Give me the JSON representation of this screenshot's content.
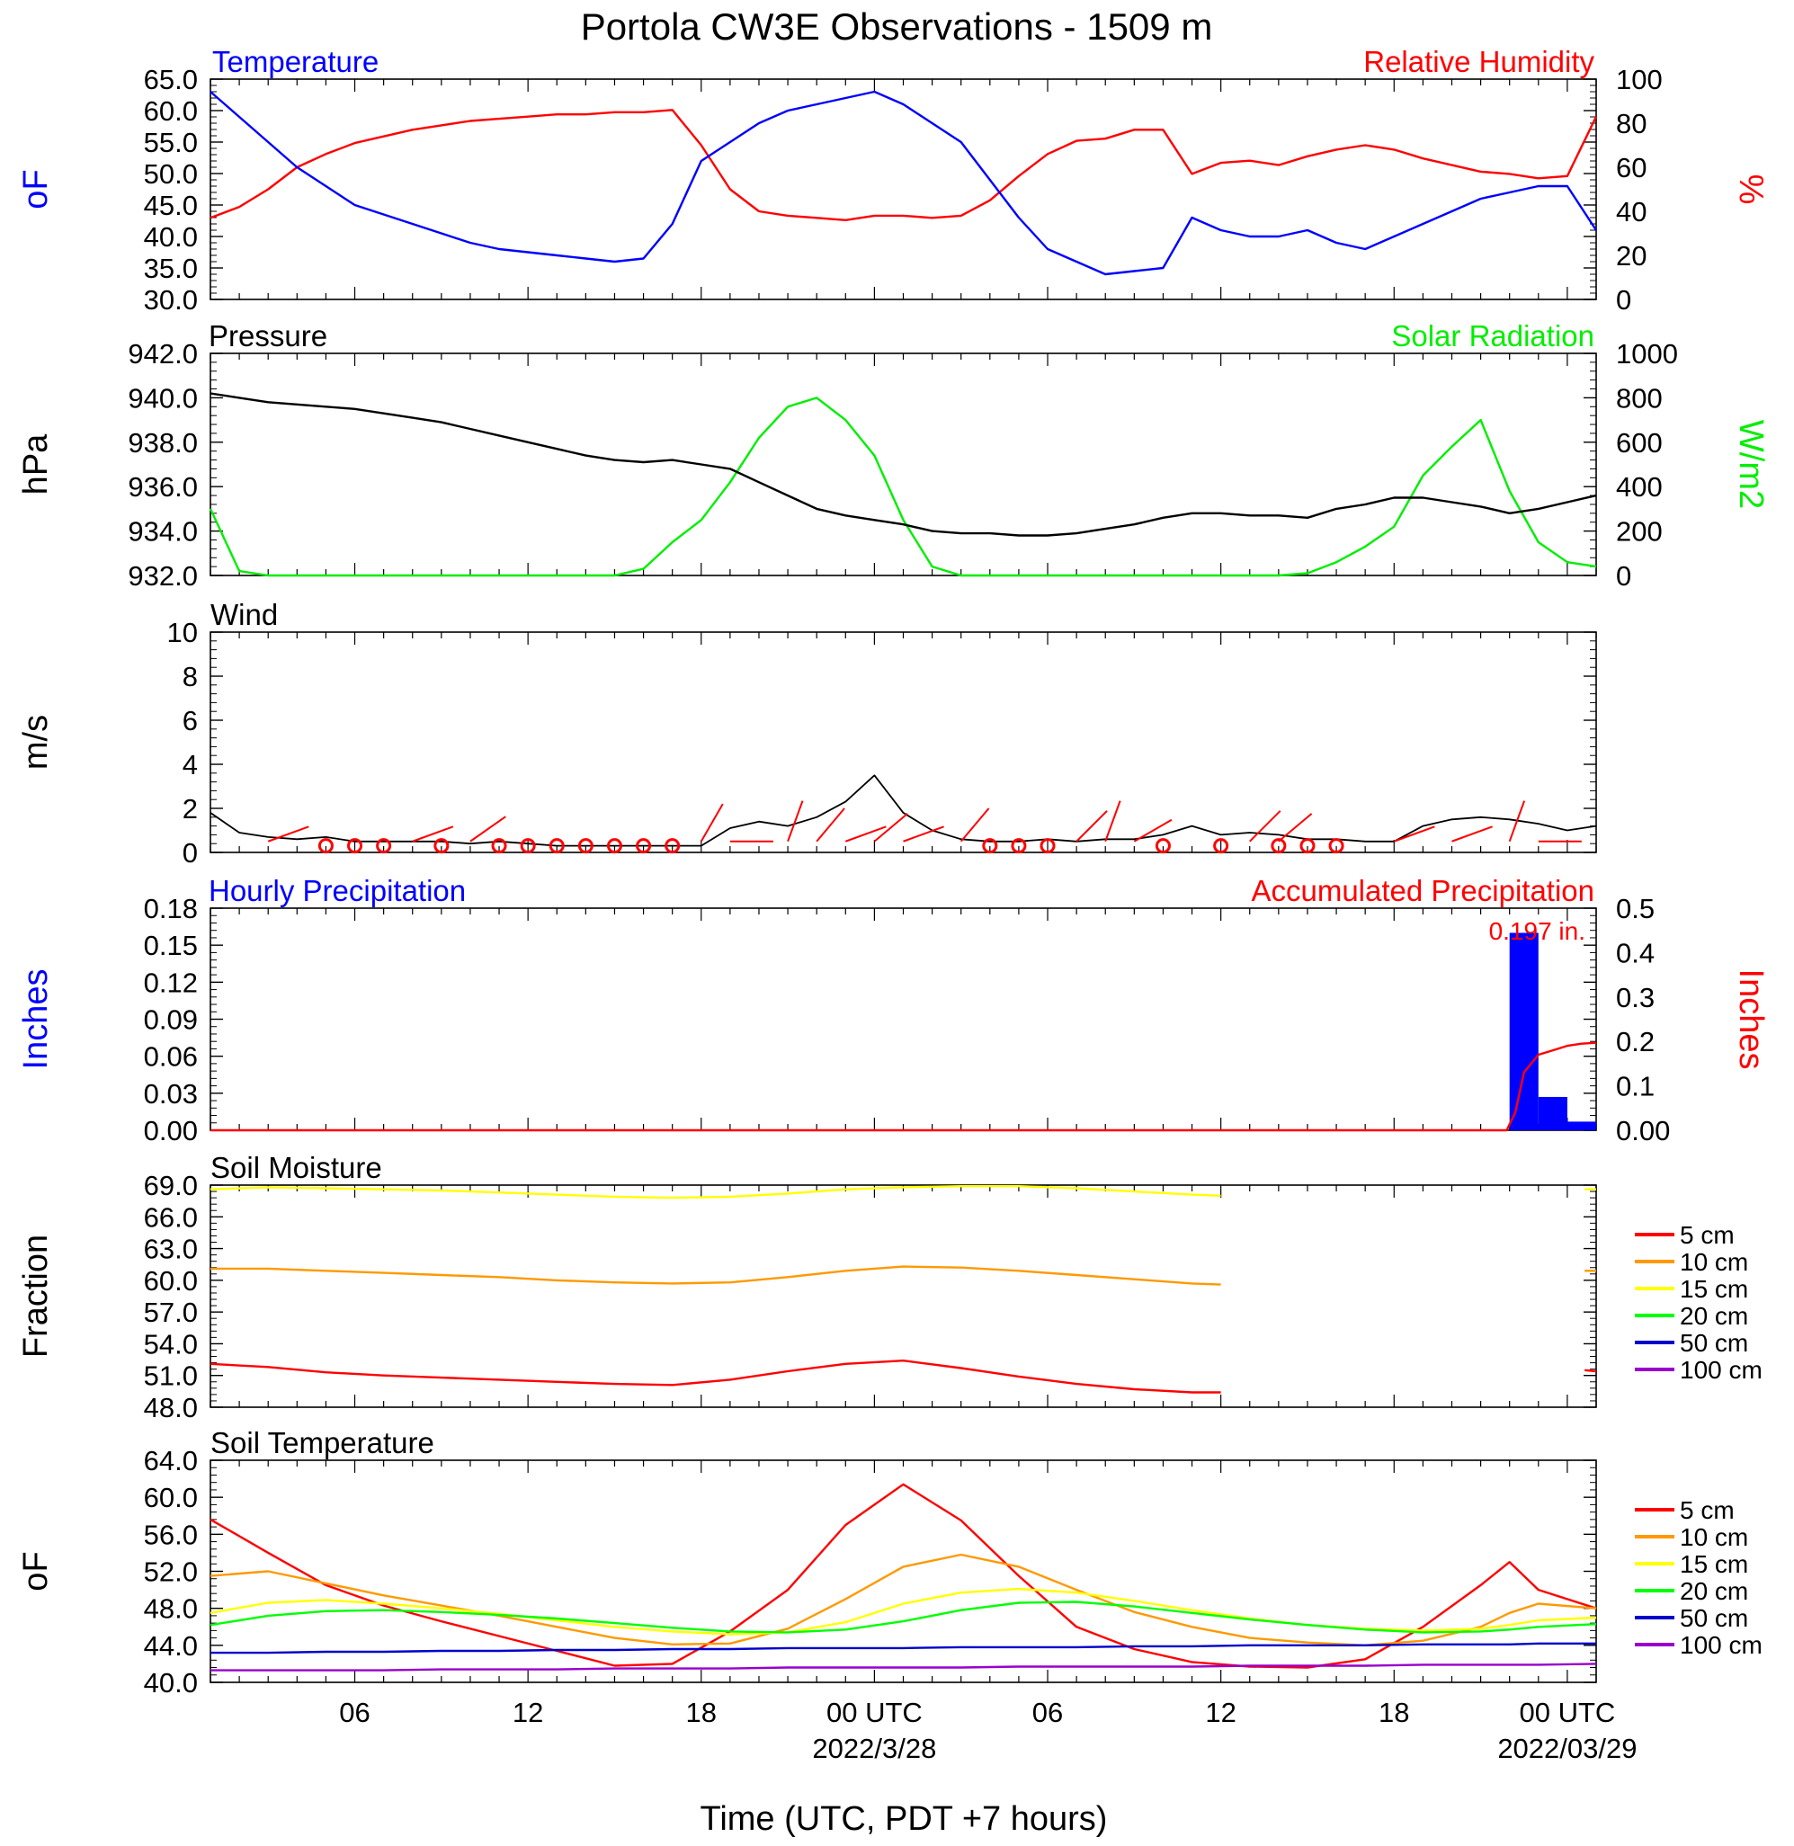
{
  "title": "Portola CW3E Observations - 1509 m",
  "x_axis": {
    "label": "Time (UTC, PDT +7 hours)",
    "range_hours": [
      0,
      48
    ],
    "tick_hours": [
      5,
      11,
      17,
      23,
      29,
      35,
      41,
      47
    ],
    "tick_labels": [
      "06",
      "12",
      "18",
      "00 UTC",
      "06",
      "12",
      "18",
      "00 UTC"
    ],
    "date_labels": [
      {
        "hour": 23,
        "text": "2022/3/28"
      },
      {
        "hour": 47,
        "text": "2022/03/29"
      }
    ]
  },
  "colors": {
    "temperature": "#0000ff",
    "humidity": "#ff0000",
    "pressure": "#000000",
    "solar": "#00ee00",
    "wind": "#000000",
    "barbs": "#ff0000",
    "precip_bar": "#0000ff",
    "precip_accum": "#ff0000",
    "depth_5": "#ff0000",
    "depth_10": "#ff9900",
    "depth_15": "#ffff00",
    "depth_20": "#00ff00",
    "depth_50": "#0000cc",
    "depth_100": "#9900cc"
  },
  "legend_depths": [
    "5 cm",
    "10 cm",
    "15 cm",
    "20 cm",
    "50 cm",
    "100 cm"
  ],
  "chart_data": [
    {
      "type": "line",
      "name": "panel-temp-rh",
      "title_left": "Temperature",
      "title_right": "Relative Humidity",
      "ylabel_left": "oF",
      "ylabel_right": "%",
      "ylim_left": [
        30,
        65
      ],
      "ylim_right": [
        0,
        100
      ],
      "yticks_left": [
        "30.0",
        "35.0",
        "40.0",
        "45.0",
        "50.0",
        "55.0",
        "60.0",
        "65.0"
      ],
      "yticks_right": [
        "0",
        "20",
        "40",
        "60",
        "80",
        "100"
      ],
      "x": [
        0,
        1,
        2,
        3,
        4,
        5,
        6,
        7,
        8,
        9,
        10,
        11,
        12,
        13,
        14,
        15,
        16,
        17,
        18,
        19,
        20,
        21,
        22,
        23,
        24,
        25,
        26,
        27,
        28,
        29,
        30,
        31,
        32,
        33,
        34,
        35,
        36,
        37,
        38,
        39,
        40,
        41,
        42,
        43,
        44,
        45,
        46,
        47,
        48
      ],
      "series": [
        {
          "name": "Temperature",
          "axis": "left",
          "values": [
            63,
            59,
            55,
            51,
            48,
            45,
            43.5,
            42,
            40.5,
            39,
            38,
            37.5,
            37,
            36.5,
            36,
            36.5,
            42,
            52,
            55,
            58,
            60,
            61,
            62,
            63,
            61,
            58,
            55,
            49,
            43,
            38,
            36,
            34,
            34.5,
            35,
            43,
            41,
            40,
            40,
            41,
            39,
            38,
            40,
            42,
            44,
            46,
            47,
            48,
            48,
            41
          ]
        },
        {
          "name": "Relative Humidity",
          "axis": "right",
          "values": [
            37,
            42,
            50,
            60,
            66,
            71,
            74,
            77,
            79,
            81,
            82,
            83,
            84,
            84,
            85,
            85,
            86,
            70,
            50,
            40,
            38,
            37,
            36,
            38,
            38,
            37,
            38,
            45,
            56,
            66,
            72,
            73,
            77,
            77,
            57,
            62,
            63,
            61,
            65,
            68,
            70,
            68,
            64,
            61,
            58,
            57,
            55,
            56,
            83
          ]
        }
      ]
    },
    {
      "type": "line",
      "name": "panel-pressure-solar",
      "title_left": "Pressure",
      "title_right": "Solar Radiation",
      "ylabel_left": "hPa",
      "ylabel_right": "W/m2",
      "ylim_left": [
        932,
        942
      ],
      "ylim_right": [
        0,
        1000
      ],
      "yticks_left": [
        "932.0",
        "934.0",
        "936.0",
        "938.0",
        "940.0",
        "942.0"
      ],
      "yticks_right": [
        "0",
        "200",
        "400",
        "600",
        "800",
        "1000"
      ],
      "x": [
        0,
        1,
        2,
        3,
        4,
        5,
        6,
        7,
        8,
        9,
        10,
        11,
        12,
        13,
        14,
        15,
        16,
        17,
        18,
        19,
        20,
        21,
        22,
        23,
        24,
        25,
        26,
        27,
        28,
        29,
        30,
        31,
        32,
        33,
        34,
        35,
        36,
        37,
        38,
        39,
        40,
        41,
        42,
        43,
        44,
        45,
        46,
        47,
        48
      ],
      "series": [
        {
          "name": "Pressure",
          "axis": "left",
          "values": [
            940.2,
            940,
            939.8,
            939.7,
            939.6,
            939.5,
            939.3,
            939.1,
            938.9,
            938.6,
            938.3,
            938,
            937.7,
            937.4,
            937.2,
            937.1,
            937.2,
            937,
            936.8,
            936.2,
            935.6,
            935,
            934.7,
            934.5,
            934.3,
            934,
            933.9,
            933.9,
            933.8,
            933.8,
            933.9,
            934.1,
            934.3,
            934.6,
            934.8,
            934.8,
            934.7,
            934.7,
            934.6,
            935,
            935.2,
            935.5,
            935.5,
            935.3,
            935.1,
            934.8,
            935,
            935.3,
            935.6
          ]
        },
        {
          "name": "Solar Radiation",
          "axis": "right",
          "values": [
            300,
            20,
            0,
            0,
            0,
            0,
            0,
            0,
            0,
            0,
            0,
            0,
            0,
            0,
            0,
            30,
            150,
            250,
            420,
            620,
            760,
            800,
            700,
            540,
            250,
            40,
            0,
            0,
            0,
            0,
            0,
            0,
            0,
            0,
            0,
            0,
            0,
            0,
            10,
            60,
            130,
            220,
            450,
            580,
            700,
            380,
            150,
            60,
            40
          ]
        }
      ]
    },
    {
      "type": "line",
      "name": "panel-wind",
      "title_left": "Wind",
      "ylabel_left": "m/s",
      "ylim_left": [
        0,
        10
      ],
      "yticks_left": [
        "0",
        "2",
        "4",
        "6",
        "8",
        "10"
      ],
      "x": [
        0,
        1,
        2,
        3,
        4,
        5,
        6,
        7,
        8,
        9,
        10,
        11,
        12,
        13,
        14,
        15,
        16,
        17,
        18,
        19,
        20,
        21,
        22,
        23,
        24,
        25,
        26,
        27,
        28,
        29,
        30,
        31,
        32,
        33,
        34,
        35,
        36,
        37,
        38,
        39,
        40,
        41,
        42,
        43,
        44,
        45,
        46,
        47,
        48
      ],
      "series": [
        {
          "name": "Wind",
          "axis": "left",
          "values": [
            1.8,
            0.9,
            0.7,
            0.6,
            0.7,
            0.5,
            0.5,
            0.5,
            0.5,
            0.4,
            0.5,
            0.4,
            0.3,
            0.3,
            0.3,
            0.3,
            0.3,
            0.3,
            1.1,
            1.4,
            1.2,
            1.6,
            2.3,
            3.5,
            1.8,
            1,
            0.6,
            0.5,
            0.5,
            0.6,
            0.5,
            0.6,
            0.6,
            0.8,
            1.2,
            0.8,
            0.9,
            0.8,
            0.6,
            0.6,
            0.5,
            0.5,
            1.2,
            1.5,
            1.6,
            1.5,
            1.3,
            1,
            1.2
          ]
        }
      ],
      "calm_circle_hours": [
        4,
        5,
        6,
        8,
        10,
        11,
        12,
        13,
        14,
        15,
        16,
        27,
        28,
        29,
        33,
        35,
        37,
        38,
        39
      ],
      "barbs": [
        {
          "hour": 2,
          "dir": 250
        },
        {
          "hour": 7,
          "dir": 250
        },
        {
          "hour": 9,
          "dir": 235
        },
        {
          "hour": 17,
          "dir": 210
        },
        {
          "hour": 18,
          "dir": 270
        },
        {
          "hour": 20,
          "dir": 200
        },
        {
          "hour": 21,
          "dir": 220
        },
        {
          "hour": 22,
          "dir": 250
        },
        {
          "hour": 23,
          "dir": 230
        },
        {
          "hour": 24,
          "dir": 250
        },
        {
          "hour": 26,
          "dir": 220
        },
        {
          "hour": 30,
          "dir": 225
        },
        {
          "hour": 31,
          "dir": 200
        },
        {
          "hour": 32,
          "dir": 240
        },
        {
          "hour": 36,
          "dir": 225
        },
        {
          "hour": 37,
          "dir": 230
        },
        {
          "hour": 41,
          "dir": 250
        },
        {
          "hour": 43,
          "dir": 250
        },
        {
          "hour": 45,
          "dir": 200
        },
        {
          "hour": 46,
          "dir": 270
        }
      ]
    },
    {
      "type": "bar",
      "name": "panel-precip",
      "title_left": "Hourly Precipitation",
      "title_right": "Accumulated Precipitation",
      "annotation": "0.197 in.",
      "ylabel_left": "Inches",
      "ylabel_right": "Inches",
      "ylim_left": [
        0,
        0.18
      ],
      "ylim_right": [
        0,
        0.5
      ],
      "yticks_left": [
        "0.00",
        "0.03",
        "0.06",
        "0.09",
        "0.12",
        "0.15",
        "0.18"
      ],
      "yticks_right": [
        "0.00",
        "0.1",
        "0.2",
        "0.3",
        "0.4",
        "0.5"
      ],
      "bars": [
        {
          "start_hour": 45,
          "end_hour": 46,
          "value": 0.16
        },
        {
          "start_hour": 46,
          "end_hour": 47,
          "value": 0.027
        },
        {
          "start_hour": 47,
          "end_hour": 48,
          "value": 0.007
        }
      ],
      "accumulated": {
        "x": [
          0,
          44.9,
          45.2,
          45.5,
          46,
          46.5,
          47,
          47.5,
          48
        ],
        "values": [
          0,
          0,
          0.04,
          0.13,
          0.17,
          0.18,
          0.19,
          0.195,
          0.197
        ]
      }
    },
    {
      "type": "line",
      "name": "panel-soil-moisture",
      "title_left": "Soil Moisture",
      "ylabel_left": "Fraction",
      "ylim_left": [
        48,
        69
      ],
      "yticks_left": [
        "48.0",
        "51.0",
        "54.0",
        "57.0",
        "60.0",
        "63.0",
        "66.0",
        "69.0"
      ],
      "x": [
        0,
        2,
        4,
        6,
        8,
        10,
        12,
        14,
        16,
        18,
        20,
        22,
        24,
        26,
        28,
        30,
        32,
        34,
        35
      ],
      "series": [
        {
          "name": "5 cm",
          "values": [
            52.1,
            51.8,
            51.3,
            51,
            50.8,
            50.6,
            50.4,
            50.2,
            50.1,
            50.6,
            51.4,
            52.1,
            52.4,
            51.7,
            50.9,
            50.2,
            49.7,
            49.4,
            49.4
          ]
        },
        {
          "name": "10 cm",
          "values": [
            61.1,
            61.1,
            60.9,
            60.7,
            60.5,
            60.3,
            60,
            59.8,
            59.7,
            59.8,
            60.3,
            60.9,
            61.3,
            61.2,
            60.9,
            60.5,
            60.1,
            59.7,
            59.6
          ]
        },
        {
          "name": "15 cm",
          "values": [
            68.6,
            68.8,
            68.7,
            68.6,
            68.5,
            68.3,
            68.1,
            67.9,
            67.8,
            67.9,
            68.2,
            68.6,
            68.8,
            68.9,
            68.9,
            68.7,
            68.4,
            68.1,
            68
          ]
        }
      ],
      "tail": [
        {
          "name": "5 cm",
          "x": [
            47.6,
            48
          ],
          "values": [
            51.5,
            51.4
          ]
        },
        {
          "name": "10 cm",
          "x": [
            47.6,
            48
          ],
          "values": [
            60.9,
            60.9
          ]
        },
        {
          "name": "15 cm",
          "x": [
            47.6,
            48
          ],
          "values": [
            68.6,
            68.6
          ]
        }
      ],
      "legend": [
        "5 cm",
        "10 cm",
        "15 cm",
        "20 cm",
        "50 cm",
        "100 cm"
      ]
    },
    {
      "type": "line",
      "name": "panel-soil-temp",
      "title_left": "Soil Temperature",
      "ylabel_left": "oF",
      "ylim_left": [
        40,
        64
      ],
      "yticks_left": [
        "40.0",
        "44.0",
        "48.0",
        "52.0",
        "56.0",
        "60.0",
        "64.0"
      ],
      "x": [
        0,
        2,
        4,
        6,
        8,
        10,
        12,
        14,
        16,
        18,
        20,
        22,
        24,
        26,
        28,
        30,
        32,
        34,
        36,
        38,
        40,
        42,
        44,
        45,
        46,
        48
      ],
      "series": [
        {
          "name": "5 cm",
          "values": [
            57.6,
            54,
            50.5,
            48.3,
            46.6,
            45,
            43.4,
            41.8,
            42,
            45.5,
            50,
            57,
            61.4,
            57.5,
            51.5,
            46,
            43.6,
            42.2,
            41.7,
            41.6,
            42.5,
            46,
            50.5,
            53,
            50,
            48
          ]
        },
        {
          "name": "10 cm",
          "values": [
            51.5,
            52,
            50.7,
            49.4,
            48.3,
            47.2,
            46,
            44.8,
            44.1,
            44.2,
            45.8,
            49,
            52.5,
            53.8,
            52.5,
            50,
            47.6,
            46,
            44.8,
            44.3,
            44,
            44.5,
            46,
            47.5,
            48.5,
            48
          ]
        },
        {
          "name": "15 cm",
          "values": [
            47.5,
            48.6,
            48.9,
            48.5,
            48,
            47.4,
            46.7,
            46,
            45.5,
            45.2,
            45.4,
            46.5,
            48.5,
            49.7,
            50.1,
            49.7,
            48.8,
            47.8,
            46.9,
            46.2,
            45.8,
            45.6,
            45.8,
            46.2,
            46.7,
            47
          ]
        },
        {
          "name": "20 cm",
          "values": [
            46.2,
            47.2,
            47.7,
            47.8,
            47.6,
            47.3,
            46.9,
            46.4,
            45.9,
            45.5,
            45.4,
            45.7,
            46.6,
            47.8,
            48.6,
            48.7,
            48.2,
            47.5,
            46.8,
            46.2,
            45.7,
            45.4,
            45.5,
            45.7,
            46,
            46.3
          ]
        },
        {
          "name": "50 cm",
          "values": [
            43.2,
            43.2,
            43.3,
            43.3,
            43.4,
            43.4,
            43.5,
            43.5,
            43.6,
            43.6,
            43.7,
            43.7,
            43.7,
            43.8,
            43.8,
            43.8,
            43.9,
            43.9,
            44,
            44,
            44,
            44.1,
            44.1,
            44.1,
            44.2,
            44.2
          ]
        },
        {
          "name": "100 cm",
          "values": [
            41.3,
            41.3,
            41.3,
            41.3,
            41.4,
            41.4,
            41.4,
            41.5,
            41.5,
            41.5,
            41.6,
            41.6,
            41.6,
            41.6,
            41.7,
            41.7,
            41.7,
            41.7,
            41.8,
            41.8,
            41.8,
            41.9,
            41.9,
            41.9,
            41.9,
            42
          ]
        }
      ],
      "legend": [
        "5 cm",
        "10 cm",
        "15 cm",
        "20 cm",
        "50 cm",
        "100 cm"
      ]
    }
  ]
}
